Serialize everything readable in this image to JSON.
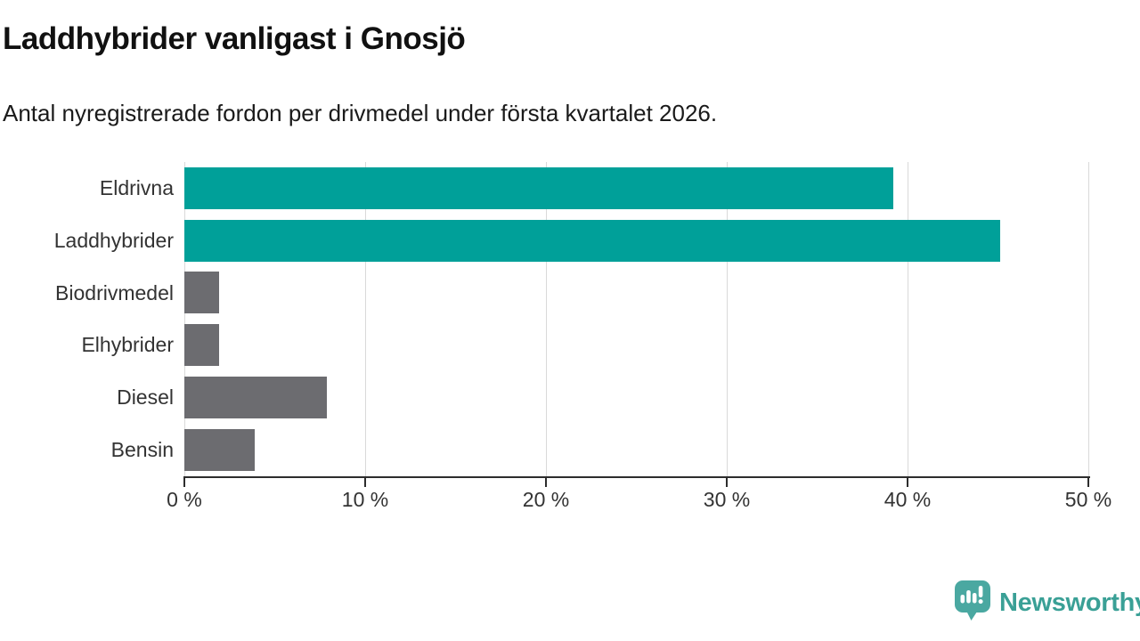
{
  "header": {
    "title": "Laddhybrider vanligast i Gnosjö",
    "subtitle": "Antal nyregistrerade fordon per drivmedel under första kvartalet 2026."
  },
  "chart_data": {
    "type": "bar",
    "orientation": "horizontal",
    "title": "Laddhybrider vanligast i Gnosjö",
    "subtitle": "Antal nyregistrerade fordon per drivmedel under första kvartalet 2026.",
    "categories": [
      "Eldrivna",
      "Laddhybrider",
      "Biodrivmedel",
      "Elhybrider",
      "Diesel",
      "Bensin"
    ],
    "values": [
      39.2,
      45.1,
      1.9,
      1.9,
      7.9,
      3.9
    ],
    "unit": "%",
    "xlim": [
      0,
      50
    ],
    "x_ticks": [
      0,
      10,
      20,
      30,
      40,
      50
    ],
    "x_tick_labels": [
      "0 %",
      "10 %",
      "20 %",
      "30 %",
      "40 %",
      "50 %"
    ],
    "grid": true,
    "legend": false,
    "bar_colors": [
      "#00a099",
      "#00a099",
      "#6c6c70",
      "#6c6c70",
      "#6c6c70",
      "#6c6c70"
    ],
    "highlight_color": "#00a099",
    "default_color": "#6c6c70"
  },
  "footer": {
    "brand": "Newsworthy",
    "brand_color": "#3aa096",
    "icon": "newsworthy-speech-bubble-chart-icon",
    "icon_color": "#4aa8a1"
  }
}
